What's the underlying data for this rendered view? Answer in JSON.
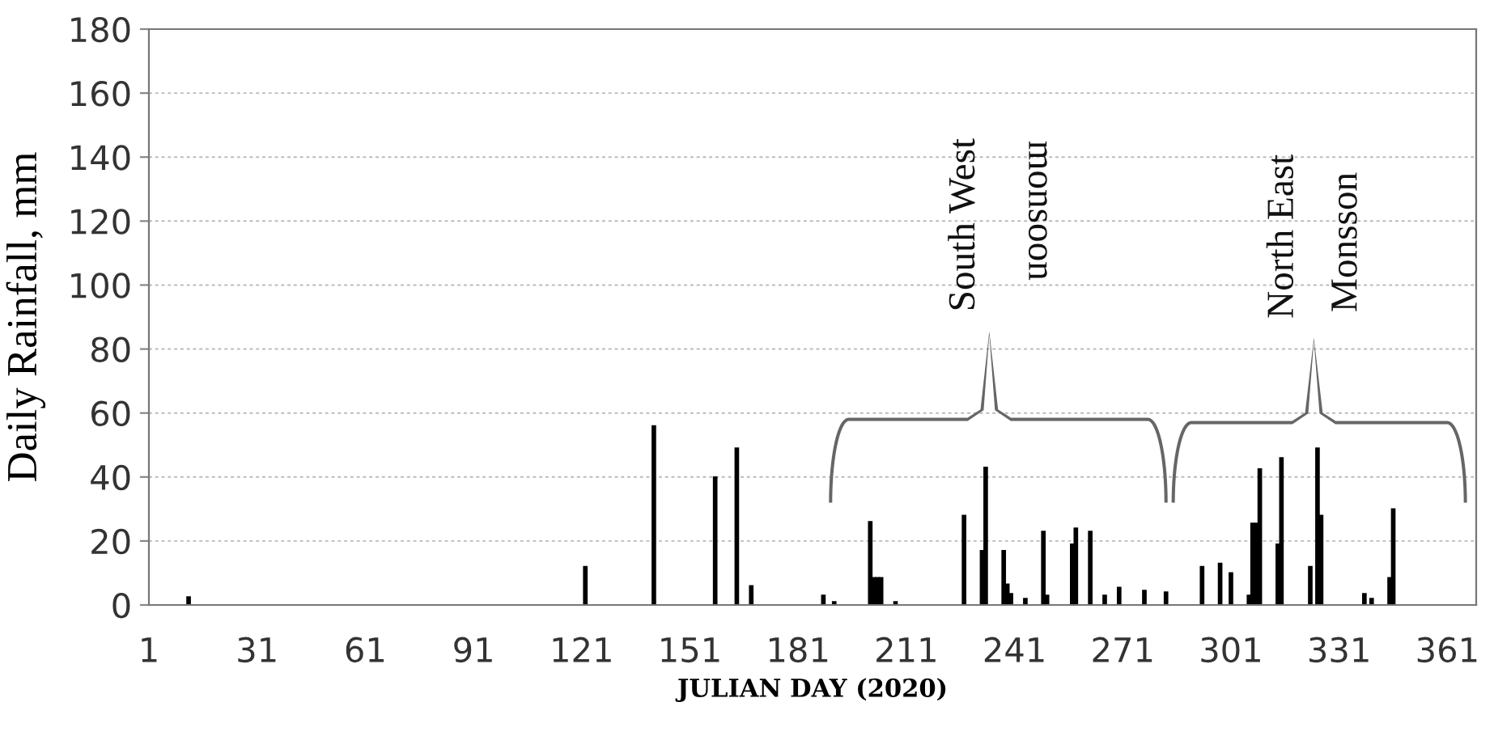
{
  "chart_data": {
    "type": "bar",
    "xlabel": "JULIAN DAY (2020)",
    "ylabel": "Daily Rainfall, mm",
    "x": [
      12,
      122,
      141,
      158,
      164,
      168,
      188,
      191,
      201,
      202,
      203,
      204,
      208,
      227,
      232,
      233,
      238,
      239,
      240,
      244,
      249,
      250,
      257,
      258,
      262,
      266,
      270,
      277,
      283,
      293,
      298,
      301,
      306,
      307,
      308,
      309,
      314,
      315,
      323,
      325,
      326,
      338,
      340,
      345,
      346
    ],
    "values": [
      2.5,
      12,
      56,
      40,
      49,
      6,
      3,
      1,
      26,
      8.5,
      8.5,
      8.5,
      1,
      28,
      17,
      43,
      17,
      6.5,
      3.5,
      2,
      23,
      3,
      19,
      24,
      23,
      3,
      5.5,
      4.5,
      4,
      12,
      13,
      10,
      3,
      25.5,
      25.5,
      42.5,
      19,
      46,
      12,
      49,
      28,
      3.5,
      2,
      8.5,
      30
    ],
    "color": "#000000",
    "xlim": [
      1,
      369
    ],
    "xticks": [
      1,
      31,
      61,
      91,
      121,
      151,
      181,
      211,
      241,
      271,
      301,
      331,
      361
    ],
    "ylim": [
      0,
      180
    ],
    "yticks": [
      0,
      20,
      40,
      60,
      80,
      100,
      120,
      140,
      160,
      180
    ],
    "grid": "y",
    "annotations": [
      "South West",
      "monsoon",
      "North East",
      "Monsson"
    ]
  }
}
